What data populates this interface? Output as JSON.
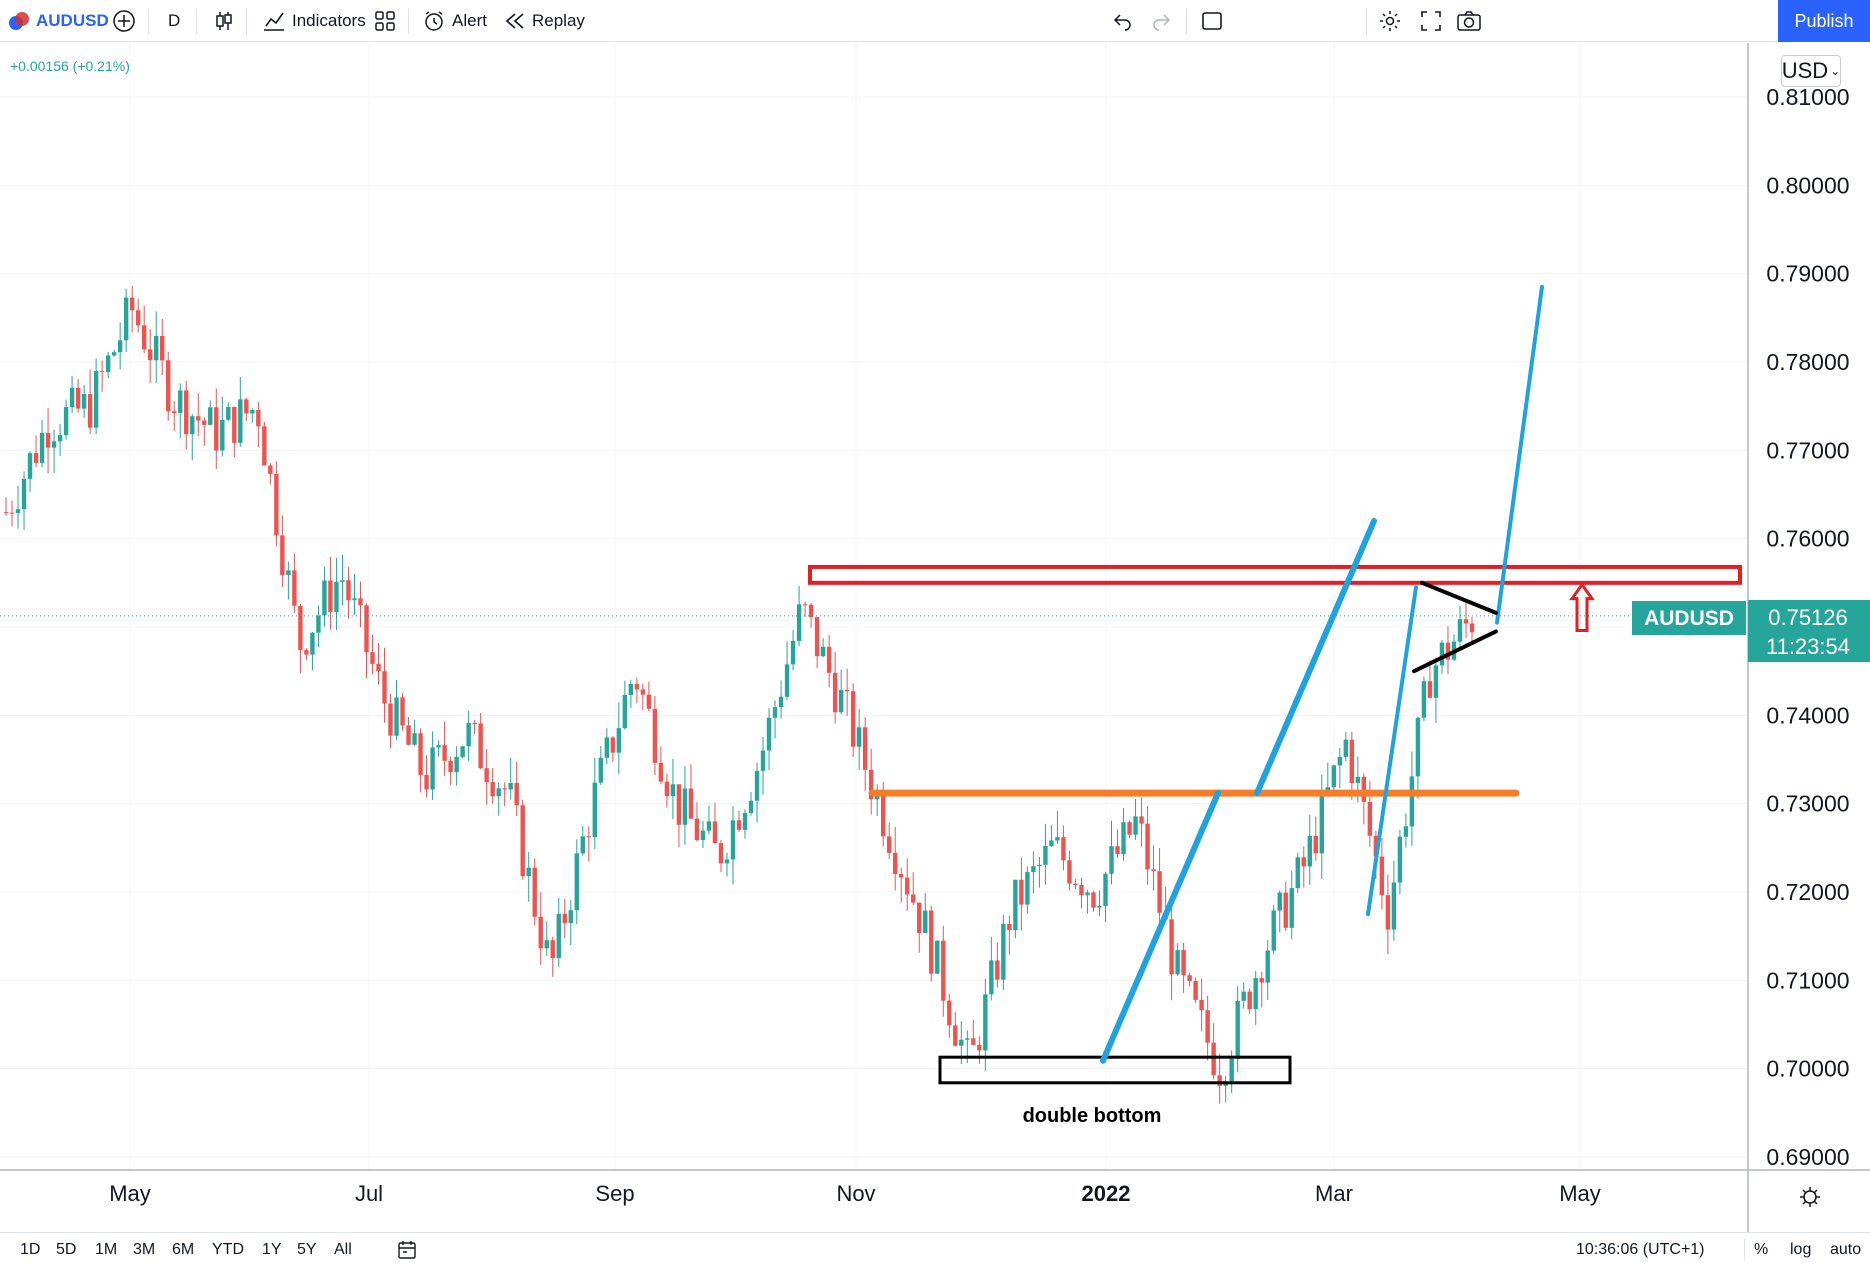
{
  "toolbar": {
    "symbol": "AUDUSD",
    "interval": "D",
    "indicators_label": "Indicators",
    "alert_label": "Alert",
    "replay_label": "Replay",
    "publish_label": "Publish"
  },
  "legend": {
    "change": "+0.00156 (+0.21%)"
  },
  "price_scale": {
    "currency": "USD",
    "ticks": [
      "0.81000",
      "0.80000",
      "0.79000",
      "0.78000",
      "0.77000",
      "0.76000",
      "0.74000",
      "0.73000",
      "0.72000",
      "0.71000",
      "0.70000",
      "0.69000"
    ],
    "current_symbol": "AUDUSD",
    "current_price": "0.75126",
    "countdown": "11:23:54",
    "current_color": "#26a69a"
  },
  "time_scale": {
    "ticks": [
      "May",
      "Jul",
      "Sep",
      "Nov",
      "2022",
      "Mar",
      "May"
    ]
  },
  "bottom": {
    "ranges": [
      "1D",
      "5D",
      "1M",
      "3M",
      "6M",
      "YTD",
      "1Y",
      "5Y",
      "All"
    ],
    "clock": "10:36:06 (UTC+1)",
    "percent": "%",
    "log": "log",
    "auto": "auto"
  },
  "annotations": {
    "double_bottom": "double bottom",
    "resistance_color": "#e31e24",
    "support_color": "#f57c29",
    "trend_color": "#1fa3e0",
    "box_color": "#000000"
  },
  "chart_data": {
    "type": "candlestick",
    "symbol": "AUDUSD",
    "ylim": [
      0.69,
      0.812
    ],
    "up_color": "#26a69a",
    "down_color": "#ef5350",
    "grid": true,
    "x": [
      "May",
      "Jul",
      "Sep",
      "Nov",
      "2022",
      "Mar",
      "May"
    ],
    "y_ticks": [
      0.69,
      0.7,
      0.71,
      0.72,
      0.73,
      0.74,
      0.75,
      0.76,
      0.77,
      0.78,
      0.79,
      0.8,
      0.81
    ],
    "close_path": [
      [
        0.763,
        "Apr"
      ],
      [
        0.773,
        "late Apr"
      ],
      [
        0.775,
        "early May"
      ],
      [
        0.786,
        "mid May"
      ],
      [
        0.776,
        "late May"
      ],
      [
        0.772,
        "early Jun"
      ],
      [
        0.775,
        "mid Jun"
      ],
      [
        0.748,
        "late Jun"
      ],
      [
        0.756,
        "early Jul"
      ],
      [
        0.742,
        "mid Jul"
      ],
      [
        0.733,
        "late Jul"
      ],
      [
        0.738,
        "early Aug"
      ],
      [
        0.731,
        "mid Aug"
      ],
      [
        0.711,
        "late Aug"
      ],
      [
        0.73,
        "early Sep"
      ],
      [
        0.745,
        "mid Sep"
      ],
      [
        0.73,
        "late Sep"
      ],
      [
        0.724,
        "early Oct"
      ],
      [
        0.735,
        "mid Oct"
      ],
      [
        0.752,
        "late Oct"
      ],
      [
        0.741,
        "early Nov"
      ],
      [
        0.728,
        "mid Nov"
      ],
      [
        0.715,
        "late Nov"
      ],
      [
        0.7,
        "early Dec"
      ],
      [
        0.718,
        "mid Dec"
      ],
      [
        0.725,
        "late Dec"
      ],
      [
        0.72,
        "early Jan"
      ],
      [
        0.728,
        "mid Jan"
      ],
      [
        0.71,
        "late Jan"
      ],
      [
        0.7,
        "early Feb"
      ],
      [
        0.713,
        "mid Feb"
      ],
      [
        0.723,
        "late Feb"
      ],
      [
        0.737,
        "early Mar"
      ],
      [
        0.718,
        "mid Mar"
      ],
      [
        0.745,
        "late Mar"
      ],
      [
        0.751,
        "early Apr"
      ]
    ]
  }
}
